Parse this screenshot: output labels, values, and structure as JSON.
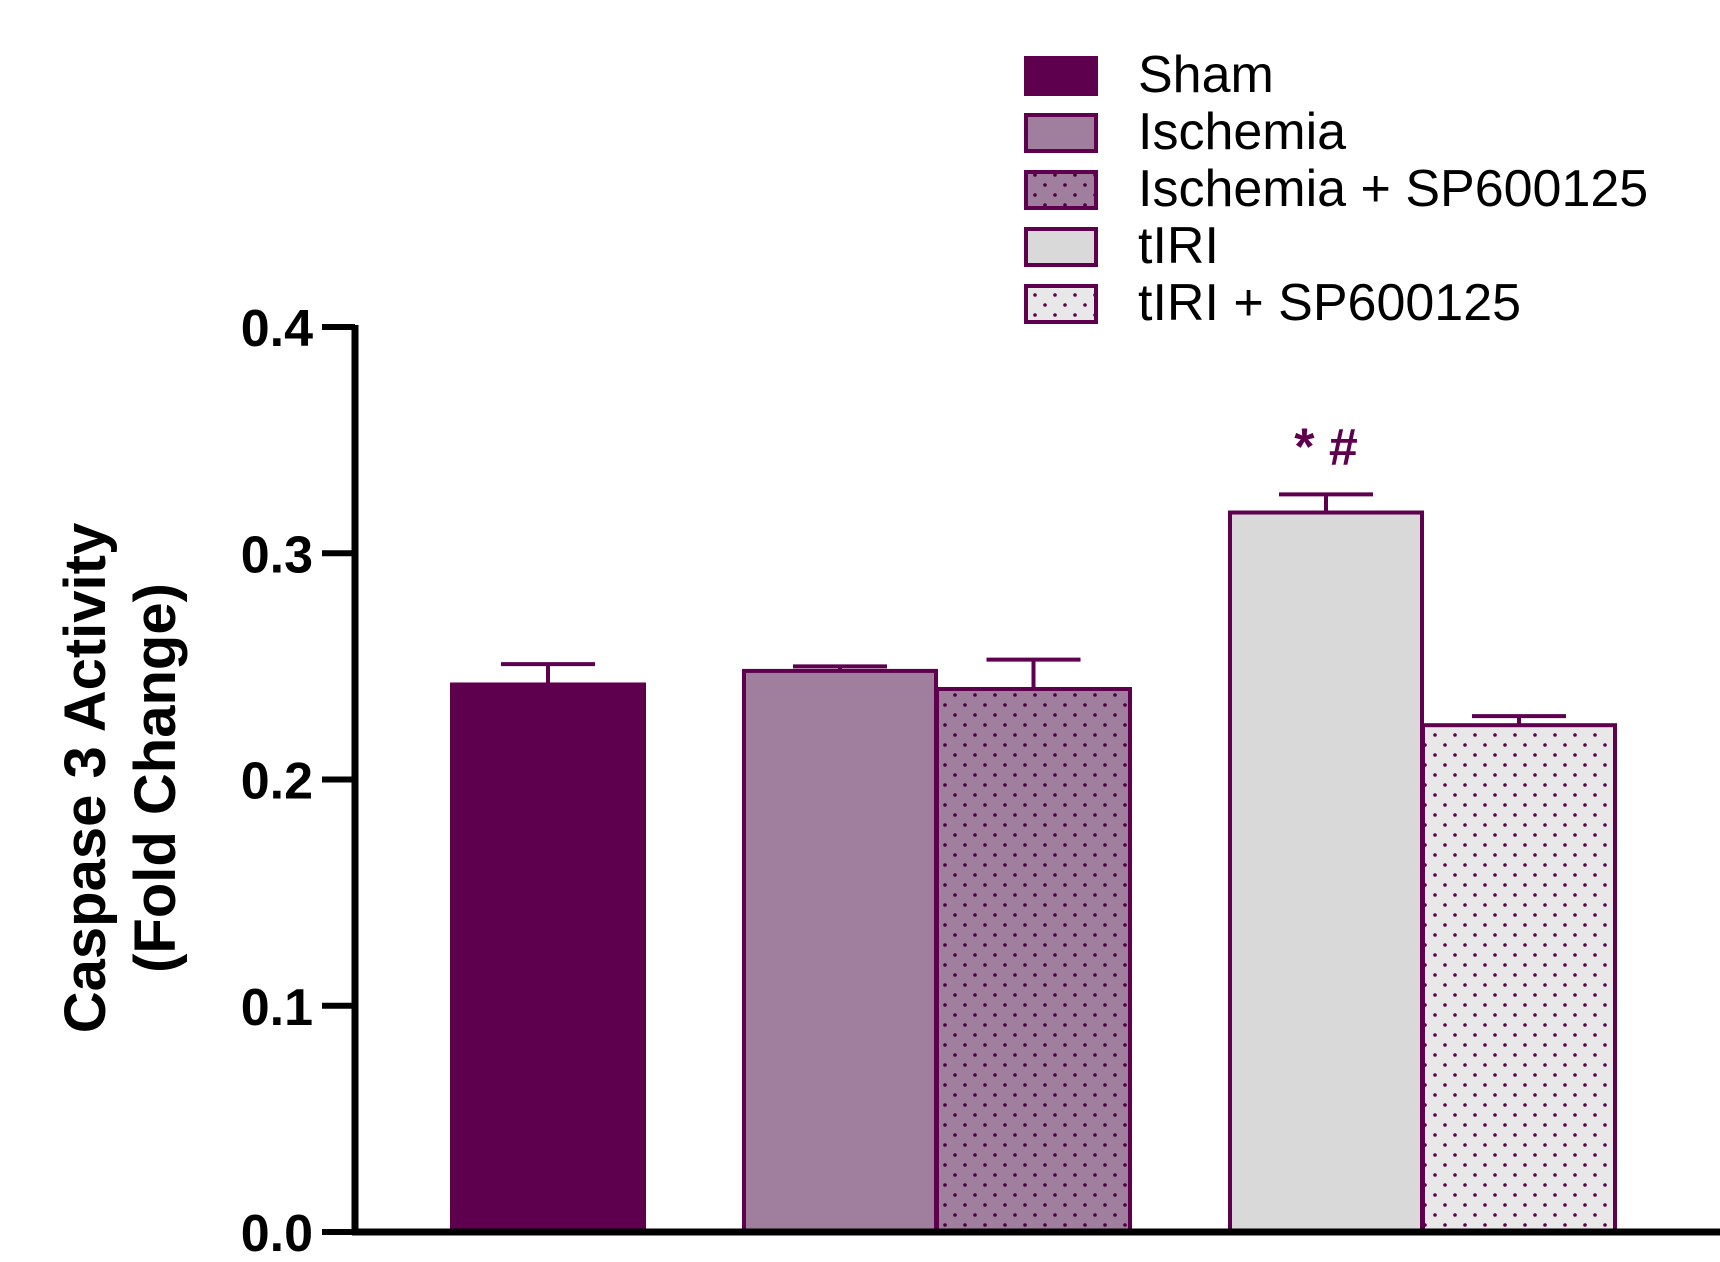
{
  "chart_data": {
    "type": "bar",
    "title": "",
    "xlabel": "",
    "ylabel_lines": [
      "Caspase 3 Activity",
      "(Fold Change)"
    ],
    "ylim": [
      0.0,
      0.4
    ],
    "yticks": [
      0.0,
      0.1,
      0.2,
      0.3,
      0.4
    ],
    "ytick_labels": [
      "0.0",
      "0.1",
      "0.2",
      "0.3",
      "0.4"
    ],
    "grid": false,
    "legend_position": "top-right",
    "series": [
      {
        "name": "Sham",
        "value": 0.242,
        "error": 0.009,
        "fill": "#5e004e",
        "pattern": "solid"
      },
      {
        "name": "Ischemia",
        "value": 0.248,
        "error": 0.002,
        "fill": "#a07e9e",
        "pattern": "solid"
      },
      {
        "name": "Ischemia + SP600125",
        "value": 0.24,
        "error": 0.013,
        "fill": "#a07e9e",
        "pattern": "dots"
      },
      {
        "name": "tIRI",
        "value": 0.318,
        "error": 0.008,
        "fill": "#d9d9d9",
        "pattern": "solid"
      },
      {
        "name": "tIRI + SP600125",
        "value": 0.224,
        "error": 0.004,
        "fill": "#e8e8e8",
        "pattern": "dots"
      }
    ],
    "annotations": [
      {
        "series": "tIRI",
        "text": "* #"
      }
    ]
  },
  "colors": {
    "axis": "#000000",
    "outline": "#5e004e",
    "annotation": "#5e004e"
  }
}
